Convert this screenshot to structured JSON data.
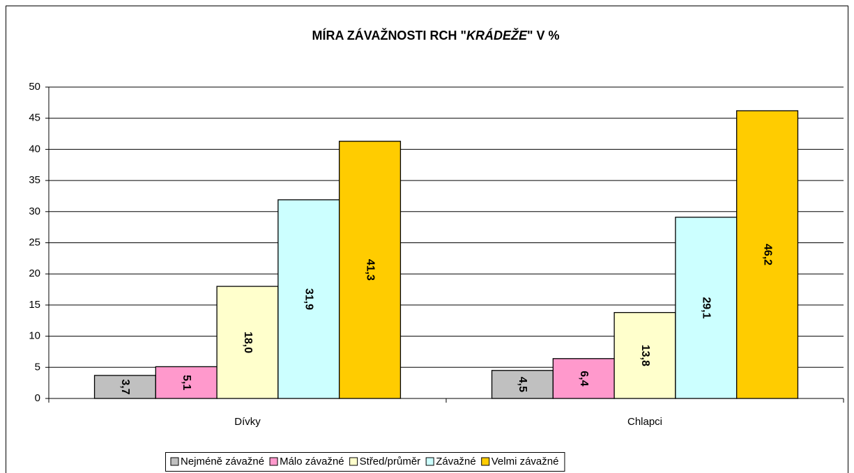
{
  "chart_data": {
    "type": "bar",
    "title": [
      "MÍRA ZÁVAŽNOSTI RCH \"",
      "KRÁDEŽE",
      "\" V %"
    ],
    "categories": [
      "Dívky",
      "Chlapci"
    ],
    "series": [
      {
        "name": "Nejméně závažné",
        "color": "#c0c0c0",
        "values": [
          3.7,
          4.5
        ],
        "value_labels": [
          "3,7",
          "4,5"
        ]
      },
      {
        "name": "Málo závažné",
        "color": "#ff99cc",
        "values": [
          5.1,
          6.4
        ],
        "value_labels": [
          "5,1",
          "6,4"
        ]
      },
      {
        "name": "Střed/průměr",
        "color": "#ffffcc",
        "values": [
          18.0,
          13.8
        ],
        "value_labels": [
          "18,0",
          "13,8"
        ]
      },
      {
        "name": "Závažné",
        "color": "#ccffff",
        "values": [
          31.9,
          29.1
        ],
        "value_labels": [
          "31,9",
          "29,1"
        ]
      },
      {
        "name": "Velmi závažné",
        "color": "#ffcc00",
        "values": [
          41.3,
          46.2
        ],
        "value_labels": [
          "41,3",
          "46,2"
        ]
      }
    ],
    "ylim": [
      0,
      50
    ],
    "yticks": [
      0,
      5,
      10,
      15,
      20,
      25,
      30,
      35,
      40,
      45,
      50
    ],
    "grid": true,
    "legend": "bottom"
  }
}
